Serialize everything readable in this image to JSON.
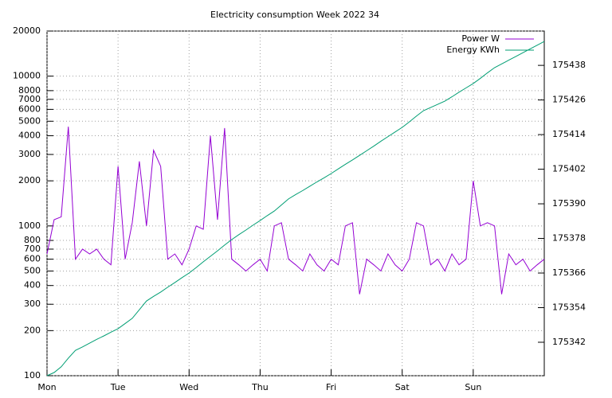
{
  "chart_data": {
    "type": "line",
    "title": "Electricity consumption Week 2022 34",
    "x": [
      0,
      0.1,
      0.2,
      0.3,
      0.4,
      0.5,
      0.6,
      0.7,
      0.8,
      0.9,
      1,
      1.1,
      1.2,
      1.3,
      1.4,
      1.5,
      1.6,
      1.7,
      1.8,
      1.9,
      2,
      2.1,
      2.2,
      2.3,
      2.4,
      2.5,
      2.6,
      2.7,
      2.8,
      2.9,
      3,
      3.1,
      3.2,
      3.3,
      3.4,
      3.5,
      3.6,
      3.7,
      3.8,
      3.9,
      4,
      4.1,
      4.2,
      4.3,
      4.4,
      4.5,
      4.6,
      4.7,
      4.8,
      4.9,
      5,
      5.1,
      5.2,
      5.3,
      5.4,
      5.5,
      5.6,
      5.7,
      5.8,
      5.9,
      6,
      6.1,
      6.2,
      6.3,
      6.4,
      6.5,
      6.6,
      6.7,
      6.8,
      6.9,
      7
    ],
    "series": [
      {
        "name": "Power W",
        "color": "#9400d3",
        "values": [
          650,
          1100,
          1150,
          4600,
          600,
          700,
          650,
          700,
          600,
          550,
          2500,
          600,
          1050,
          2700,
          1000,
          3200,
          2500,
          600,
          650,
          550,
          700,
          1000,
          950,
          4000,
          1100,
          4500,
          600,
          550,
          500,
          550,
          600,
          500,
          1000,
          1050,
          600,
          550,
          500,
          650,
          550,
          500,
          600,
          550,
          1000,
          1050,
          350,
          600,
          550,
          500,
          650,
          550,
          500,
          600,
          1050,
          1000,
          550,
          600,
          500,
          650,
          550,
          600,
          2000,
          1000,
          1050,
          1000,
          350,
          650,
          550,
          600,
          500,
          550,
          600
        ]
      },
      {
        "name": "Energy KWh",
        "color": "#009e73",
        "axis": "y2",
        "values": [
          175330.4,
          175331.5,
          175333.5,
          175336.5,
          175339.2,
          175340.4,
          175341.7,
          175343.0,
          175344.2,
          175345.5,
          175346.7,
          175348.5,
          175350.3,
          175353.3,
          175356.3,
          175357.9,
          175359.4,
          175361.1,
          175362.7,
          175364.4,
          175366.0,
          175367.9,
          175369.9,
          175371.8,
          175373.7,
          175375.7,
          175377.6,
          175379.3,
          175380.9,
          175382.6,
          175384.2,
          175385.9,
          175387.5,
          175389.6,
          175391.7,
          175393.2,
          175394.6,
          175396.1,
          175397.6,
          175399.0,
          175400.5,
          175402.1,
          175403.7,
          175405.2,
          175406.8,
          175408.4,
          175410.0,
          175411.7,
          175413.3,
          175414.9,
          175416.5,
          175418.4,
          175420.4,
          175422.3,
          175423.4,
          175424.5,
          175425.6,
          175427.1,
          175428.7,
          175430.2,
          175431.7,
          175433.5,
          175435.4,
          175437.2,
          175438.5,
          175439.8,
          175441.1,
          175442.4,
          175443.7,
          175445.0,
          175446.3
        ]
      }
    ],
    "xlim": [
      0,
      7
    ],
    "xticks": [
      {
        "value": 0,
        "label": "Mon"
      },
      {
        "value": 1,
        "label": "Tue"
      },
      {
        "value": 2,
        "label": "Wed"
      },
      {
        "value": 3,
        "label": "Thu"
      },
      {
        "value": 4,
        "label": "Fri"
      },
      {
        "value": 5,
        "label": "Sat"
      },
      {
        "value": 6,
        "label": "Sun"
      }
    ],
    "ylim": [
      100,
      20000
    ],
    "ylog": true,
    "yticks": [
      100,
      200,
      300,
      400,
      500,
      600,
      700,
      800,
      1000,
      2000,
      3000,
      4000,
      5000,
      6000,
      7000,
      8000,
      10000,
      20000
    ],
    "y2lim": [
      175330.4,
      175449.9
    ],
    "y2ticks": [
      175342,
      175354,
      175366,
      175378,
      175390,
      175402,
      175414,
      175426,
      175438
    ],
    "grid": true,
    "legend": "top-right"
  }
}
